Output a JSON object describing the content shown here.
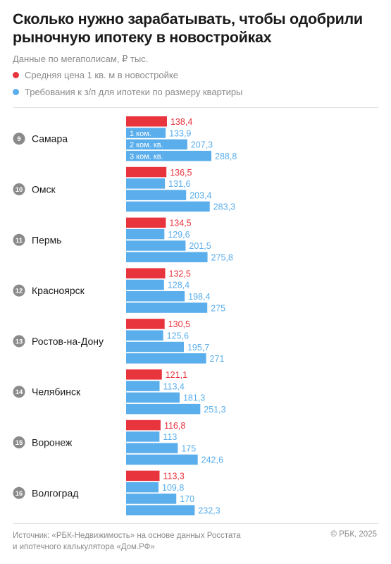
{
  "header": {
    "title": "Сколько нужно зарабатывать, чтобы одобрили рыночную ипотеку в новостройках",
    "subtitle": "Данные по мегаполисам, ₽ тыс."
  },
  "legend": {
    "price_label": "Средняя цена 1 кв. м в новостройке",
    "salary_label": "Требования к з/п для ипотеки по размеру квартиры"
  },
  "colors": {
    "red": "#E8343D",
    "blue": "#5AAEEC",
    "rank_circle": "#8a8a8a"
  },
  "chart_data": {
    "type": "bar",
    "orientation": "horizontal",
    "inline_bar_labels": [
      "1 ком.",
      "2 ком. кв.",
      "3 ком. кв."
    ],
    "series": [
      {
        "name": "Средняя цена 1 кв. м в новостройке",
        "color": "#E8343D"
      },
      {
        "name": "Требования к з/п для ипотеки по размеру квартиры",
        "color": "#5AAEEC"
      }
    ],
    "cities": [
      {
        "rank": "9",
        "name": "Самара",
        "price": 138.4,
        "salary": [
          133.9,
          207.3,
          288.8
        ],
        "labels": [
          "138,4",
          "133,9",
          "207,3",
          "288,8"
        ]
      },
      {
        "rank": "10",
        "name": "Омск",
        "price": 136.5,
        "salary": [
          131.6,
          203.4,
          283.3
        ],
        "labels": [
          "136,5",
          "131,6",
          "203,4",
          "283,3"
        ]
      },
      {
        "rank": "11",
        "name": "Пермь",
        "price": 134.5,
        "salary": [
          129.6,
          201.5,
          275.8
        ],
        "labels": [
          "134,5",
          "129,6",
          "201,5",
          "275,8"
        ]
      },
      {
        "rank": "12",
        "name": "Красноярск",
        "price": 132.5,
        "salary": [
          128.4,
          198.4,
          275
        ],
        "labels": [
          "132,5",
          "128,4",
          "198,4",
          "275"
        ]
      },
      {
        "rank": "13",
        "name": "Ростов-на-Дону",
        "price": 130.5,
        "salary": [
          125.6,
          195.7,
          271
        ],
        "labels": [
          "130,5",
          "125,6",
          "195,7",
          "271"
        ]
      },
      {
        "rank": "14",
        "name": "Челябинск",
        "price": 121.1,
        "salary": [
          113.4,
          181.3,
          251.3
        ],
        "labels": [
          "121,1",
          "113,4",
          "181,3",
          "251,3"
        ]
      },
      {
        "rank": "15",
        "name": "Воронеж",
        "price": 116.8,
        "salary": [
          113,
          175,
          242.6
        ],
        "labels": [
          "116,8",
          "113",
          "175",
          "242,6"
        ]
      },
      {
        "rank": "16",
        "name": "Волгоград",
        "price": 113.3,
        "salary": [
          109.8,
          170,
          232.3
        ],
        "labels": [
          "113,3",
          "109,8",
          "170",
          "232,3"
        ]
      }
    ]
  },
  "footer": {
    "source_line1": "Источник: «РБК-Недвижимость» на основе данных Росстата",
    "source_line2": "и ипотечного калькулятора «Дом.РФ»",
    "copyright": "© РБК, 2025"
  }
}
